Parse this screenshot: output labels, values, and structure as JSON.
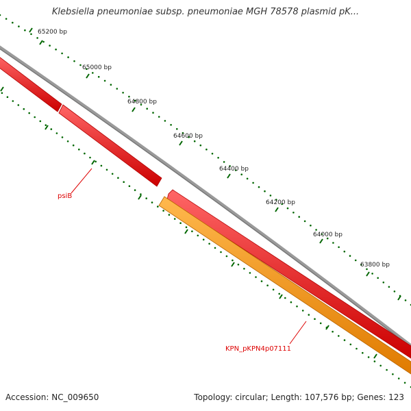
{
  "title": "Klebsiella pneumoniae subsp. pneumoniae MGH 78578 plasmid pK...",
  "ticks": [
    "65200 bp",
    "65000 bp",
    "64800 bp",
    "64600 bp",
    "64400 bp",
    "64200 bp",
    "64000 bp",
    "63800 bp"
  ],
  "genes": [
    {
      "name": "psiB",
      "color": "#dd0000"
    },
    {
      "name": "KPN_pKPN4p07111",
      "color": "#dd0000"
    }
  ],
  "colors": {
    "backbone": "#808080",
    "forward_feature": "#ff0000",
    "reverse_feature": "#ffa500",
    "ticks": "#006600"
  },
  "footer": {
    "accession": "Accession: NC_009650",
    "summary": "Topology: circular; Length: 107,576 bp; Genes: 123"
  }
}
